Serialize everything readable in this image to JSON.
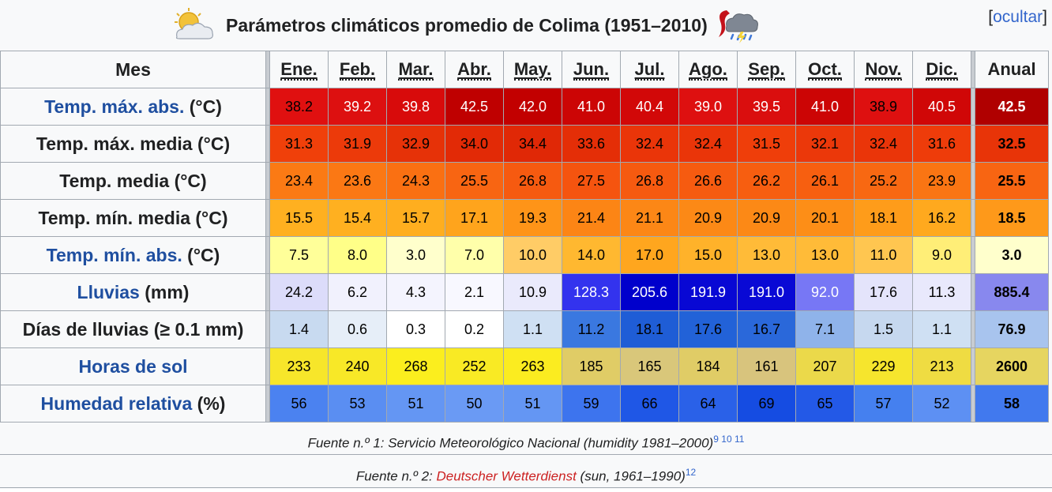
{
  "caption": {
    "title": "Parámetros climáticos promedio de Colima (1951–2010)",
    "left_icon": "partly-cloudy-icon",
    "right_icon": "storm-icon",
    "hide_open": "[",
    "hide_label": "ocultar",
    "hide_close": "]"
  },
  "table": {
    "header_label": "Mes",
    "months": [
      "Ene.",
      "Feb.",
      "Mar.",
      "Abr.",
      "May.",
      "Jun.",
      "Jul.",
      "Ago.",
      "Sep.",
      "Oct.",
      "Nov.",
      "Dic."
    ],
    "annual_label": "Anual",
    "rows": [
      {
        "label_link": "Temp. máx. abs.",
        "label_rest": " (°C)",
        "values": [
          "38.2",
          "39.2",
          "39.8",
          "42.5",
          "42.0",
          "41.0",
          "40.4",
          "39.0",
          "39.5",
          "41.0",
          "38.9",
          "40.5"
        ],
        "annual": "42.5",
        "colors": [
          "#e01010",
          "#dd1010",
          "#d80b0b",
          "#bf0000",
          "#c20000",
          "#cc0505",
          "#d20808",
          "#de1010",
          "#da0e0e",
          "#cc0505",
          "#de1010",
          "#d00707"
        ],
        "annual_color": "#b00000",
        "text_colors": [
          "#000",
          "#fff",
          "#fff",
          "#fff",
          "#fff",
          "#fff",
          "#fff",
          "#fff",
          "#fff",
          "#fff",
          "#000",
          "#fff"
        ],
        "annual_text_color": "#fff"
      },
      {
        "label_link": "",
        "label_rest": "Temp. máx. media (°C)",
        "values": [
          "31.3",
          "31.9",
          "32.9",
          "34.0",
          "34.4",
          "33.6",
          "32.4",
          "32.4",
          "31.5",
          "32.1",
          "32.4",
          "31.6"
        ],
        "annual": "32.5",
        "colors": [
          "#f0400a",
          "#ec3a0a",
          "#e63208",
          "#e22a06",
          "#e02806",
          "#e42e07",
          "#ea3509",
          "#ea3509",
          "#ef3e0a",
          "#eb380a",
          "#ea3509",
          "#ee3c0a"
        ],
        "annual_color": "#e83408",
        "text_colors": [
          "#000",
          "#000",
          "#000",
          "#000",
          "#000",
          "#000",
          "#000",
          "#000",
          "#000",
          "#000",
          "#000",
          "#000"
        ],
        "annual_text_color": "#000"
      },
      {
        "label_link": "",
        "label_rest": "Temp. media (°C)",
        "values": [
          "23.4",
          "23.6",
          "24.3",
          "25.5",
          "26.8",
          "27.5",
          "26.8",
          "26.6",
          "26.2",
          "26.1",
          "25.2",
          "23.9"
        ],
        "annual": "25.5",
        "colors": [
          "#fb7a14",
          "#fb7814",
          "#fa7012",
          "#f86512",
          "#f65a10",
          "#f5540f",
          "#f65a10",
          "#f65b10",
          "#f75e10",
          "#f75f10",
          "#f86812",
          "#fa7513"
        ],
        "annual_color": "#f86512",
        "text_colors": [
          "#000",
          "#000",
          "#000",
          "#000",
          "#000",
          "#000",
          "#000",
          "#000",
          "#000",
          "#000",
          "#000",
          "#000"
        ],
        "annual_text_color": "#000"
      },
      {
        "label_link": "",
        "label_rest": "Temp. mín. media (°C)",
        "values": [
          "15.5",
          "15.4",
          "15.7",
          "17.1",
          "19.3",
          "21.4",
          "21.1",
          "20.9",
          "20.9",
          "20.1",
          "18.1",
          "16.2"
        ],
        "annual": "18.5",
        "colors": [
          "#ffb020",
          "#ffb020",
          "#ffae1f",
          "#ffa41c",
          "#fe9418",
          "#fc8515",
          "#fc8716",
          "#fc8916",
          "#fc8916",
          "#fd8e17",
          "#fe9c1a",
          "#ffa91e"
        ],
        "annual_color": "#fe991a",
        "text_colors": [
          "#000",
          "#000",
          "#000",
          "#000",
          "#000",
          "#000",
          "#000",
          "#000",
          "#000",
          "#000",
          "#000",
          "#000"
        ],
        "annual_text_color": "#000"
      },
      {
        "label_link": "Temp. mín. abs.",
        "label_rest": " (°C)",
        "values": [
          "7.5",
          "8.0",
          "3.0",
          "7.0",
          "10.0",
          "14.0",
          "17.0",
          "15.0",
          "13.0",
          "13.0",
          "11.0",
          "9.0"
        ],
        "annual": "3.0",
        "colors": [
          "#ffff99",
          "#ffff88",
          "#ffffcc",
          "#ffffaa",
          "#ffcc66",
          "#ffb830",
          "#ffa61e",
          "#ffb22a",
          "#ffbb38",
          "#ffbb38",
          "#ffc650",
          "#ffee77"
        ],
        "annual_color": "#ffffcc",
        "text_colors": [
          "#000",
          "#000",
          "#000",
          "#000",
          "#000",
          "#000",
          "#000",
          "#000",
          "#000",
          "#000",
          "#000",
          "#000"
        ],
        "annual_text_color": "#000"
      },
      {
        "label_link": "Lluvias",
        "label_rest": " (mm)",
        "values": [
          "24.2",
          "6.2",
          "4.3",
          "2.1",
          "10.9",
          "128.3",
          "205.6",
          "191.9",
          "191.0",
          "92.0",
          "17.6",
          "11.3"
        ],
        "annual": "885.4",
        "colors": [
          "#dcdcfa",
          "#f1f1fd",
          "#f4f4fe",
          "#f8f8ff",
          "#eaeafc",
          "#3333ee",
          "#0000cc",
          "#0808d4",
          "#0909d5",
          "#7777f5",
          "#e4e4fb",
          "#e9e9fc"
        ],
        "annual_color": "#8888ee",
        "text_colors": [
          "#000",
          "#000",
          "#000",
          "#000",
          "#000",
          "#fff",
          "#fff",
          "#fff",
          "#fff",
          "#fff",
          "#000",
          "#000"
        ],
        "annual_text_color": "#000"
      },
      {
        "label_link": "",
        "label_rest": "Días de lluvias (≥ 0.1 mm)",
        "values": [
          "1.4",
          "0.6",
          "0.3",
          "0.2",
          "1.1",
          "11.2",
          "18.1",
          "17.6",
          "16.7",
          "7.1",
          "1.5",
          "1.1"
        ],
        "annual": "76.9",
        "colors": [
          "#c8daf0",
          "#e6eef8",
          "#ffffff",
          "#ffffff",
          "#cfe0f3",
          "#3a78e0",
          "#1f5dd6",
          "#2262d8",
          "#2a68da",
          "#8fb3ea",
          "#c6d8ef",
          "#cfe0f3"
        ],
        "annual_color": "#a8c4ee",
        "text_colors": [
          "#000",
          "#000",
          "#000",
          "#000",
          "#000",
          "#000",
          "#000",
          "#000",
          "#000",
          "#000",
          "#000",
          "#000"
        ],
        "annual_text_color": "#000"
      },
      {
        "label_link": "Horas de sol",
        "label_rest": "",
        "values": [
          "233",
          "240",
          "268",
          "252",
          "263",
          "185",
          "165",
          "184",
          "161",
          "207",
          "229",
          "213"
        ],
        "annual": "2600",
        "colors": [
          "#f7e62a",
          "#f8e827",
          "#fbee1e",
          "#f9ea24",
          "#fbec20",
          "#e0cc66",
          "#d9c77a",
          "#e0cc66",
          "#d8c47d",
          "#ebd94a",
          "#f6e52d",
          "#efdc42"
        ],
        "annual_color": "#e6d560",
        "text_colors": [
          "#000",
          "#000",
          "#000",
          "#000",
          "#000",
          "#000",
          "#000",
          "#000",
          "#000",
          "#000",
          "#000",
          "#000"
        ],
        "annual_text_color": "#000"
      },
      {
        "label_link": "Humedad relativa",
        "label_rest": " (%)",
        "values": [
          "56",
          "53",
          "51",
          "50",
          "51",
          "59",
          "66",
          "64",
          "69",
          "65",
          "57",
          "52"
        ],
        "annual": "58",
        "colors": [
          "#4b82f0",
          "#5a8ef2",
          "#6496f3",
          "#6a9af4",
          "#6496f3",
          "#3d74ee",
          "#1f57e6",
          "#2a61e8",
          "#154ce2",
          "#2359e7",
          "#4580ef",
          "#5d90f3"
        ],
        "annual_color": "#4179ee",
        "text_colors": [
          "#000",
          "#000",
          "#000",
          "#000",
          "#000",
          "#000",
          "#000",
          "#000",
          "#000",
          "#000",
          "#000",
          "#000"
        ],
        "annual_text_color": "#000"
      }
    ]
  },
  "sources": {
    "line1_text": "Fuente n.º 1: Servicio Meteorológico Nacional (humidity 1981–2000)",
    "line1_refs": [
      "9",
      "10",
      "11"
    ],
    "line2_prefix": "Fuente n.º 2: ",
    "line2_link": "Deutscher Wetterdienst",
    "line2_suffix": " (sun, 1961–1990)",
    "line2_ref": "12"
  }
}
